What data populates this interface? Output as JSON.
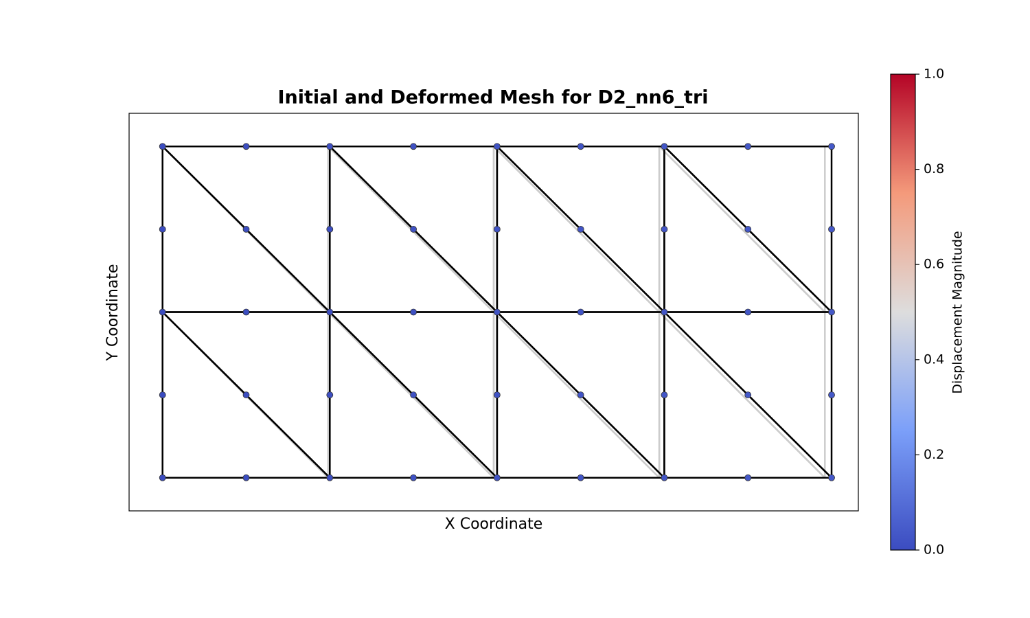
{
  "chart_data": {
    "type": "mesh",
    "title": "Initial and Deformed Mesh for D2_nn6_tri",
    "x_label": "X Coordinate",
    "y_label": "Y Coordinate",
    "xlim": [
      -0.2,
      4.16
    ],
    "ylim": [
      -0.2,
      2.2
    ],
    "initial_color": "#cccccc",
    "deformed_color": "#000000",
    "deformed": {
      "x": [
        0,
        0.5,
        1,
        1.5,
        2,
        2.5,
        3,
        3.5,
        4,
        0,
        0.5,
        1,
        1.5,
        2,
        2.5,
        3,
        3.5,
        4,
        0,
        0.5,
        1,
        1.5,
        2,
        2.5,
        3,
        3.5,
        4,
        0,
        0.5,
        1,
        1.5,
        2,
        2.5,
        3,
        3.5,
        4,
        0,
        0.5,
        1,
        1.5,
        2,
        2.5,
        3,
        3.5,
        4
      ],
      "y": [
        0,
        0,
        0,
        0,
        0,
        0,
        0,
        0,
        0,
        0.5,
        0.5,
        0.5,
        0.5,
        0.5,
        0.5,
        0.5,
        0.5,
        0.5,
        1,
        1,
        1,
        1,
        1,
        1,
        1,
        1,
        1,
        1.5,
        1.5,
        1.5,
        1.5,
        1.5,
        1.5,
        1.5,
        1.5,
        1.5,
        2,
        2,
        2,
        2,
        2,
        2,
        2,
        2,
        2
      ]
    },
    "initial": {
      "x": [
        0,
        0.495,
        0.99,
        1.485,
        1.98,
        2.475,
        2.97,
        3.465,
        3.96,
        0,
        0.495,
        0.99,
        1.485,
        1.98,
        2.475,
        2.97,
        3.465,
        3.96,
        0,
        0.495,
        0.99,
        1.485,
        1.98,
        2.475,
        2.97,
        3.465,
        3.96,
        0,
        0.495,
        0.99,
        1.485,
        1.98,
        2.475,
        2.97,
        3.465,
        3.96,
        0,
        0.495,
        0.99,
        1.485,
        1.98,
        2.475,
        2.97,
        3.465,
        3.96
      ],
      "y": [
        0,
        0,
        0,
        0,
        0,
        0,
        0,
        0,
        0,
        0.5,
        0.5,
        0.5,
        0.5,
        0.5,
        0.5,
        0.5,
        0.5,
        0.5,
        1,
        1,
        1,
        1,
        1,
        1,
        1,
        1,
        1,
        1.5,
        1.5,
        1.5,
        1.5,
        1.5,
        1.5,
        1.5,
        1.5,
        1.5,
        2,
        2,
        2,
        2,
        2,
        2,
        2,
        2,
        2
      ]
    },
    "displacement": [
      0,
      0.005,
      0.01,
      0.015,
      0.02,
      0.025,
      0.03,
      0.035,
      0.04,
      0,
      0.005,
      0.01,
      0.015,
      0.02,
      0.025,
      0.03,
      0.035,
      0.04,
      0,
      0.005,
      0.01,
      0.015,
      0.02,
      0.025,
      0.03,
      0.035,
      0.04,
      0,
      0.005,
      0.01,
      0.015,
      0.02,
      0.025,
      0.03,
      0.035,
      0.04,
      0,
      0.005,
      0.01,
      0.015,
      0.02,
      0.025,
      0.03,
      0.035,
      0.04
    ],
    "elements": [
      [
        0,
        2,
        18
      ],
      [
        2,
        20,
        18
      ],
      [
        2,
        4,
        20
      ],
      [
        4,
        22,
        20
      ],
      [
        4,
        6,
        22
      ],
      [
        6,
        24,
        22
      ],
      [
        6,
        8,
        24
      ],
      [
        8,
        26,
        24
      ],
      [
        18,
        20,
        36
      ],
      [
        20,
        38,
        36
      ],
      [
        20,
        22,
        38
      ],
      [
        22,
        40,
        38
      ],
      [
        22,
        24,
        40
      ],
      [
        24,
        42,
        40
      ],
      [
        24,
        26,
        42
      ],
      [
        26,
        44,
        42
      ]
    ],
    "colorbar": {
      "label": "Displacement Magnitude",
      "colormap": "coolwarm",
      "lim": [
        0,
        1
      ],
      "ticks": [
        {
          "value": 0,
          "label": "0.0"
        },
        0.2,
        0.4,
        0.6,
        0.8,
        {
          "value": 1,
          "label": "1.0"
        }
      ]
    }
  }
}
